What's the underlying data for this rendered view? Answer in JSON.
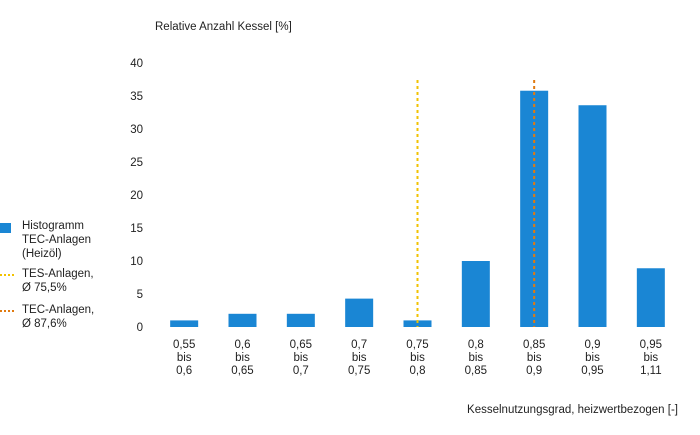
{
  "chart_data": {
    "type": "bar",
    "ylabel": "Relative Anzahl Kessel [%]",
    "xlabel": "Kesselnutzungsgrad, heizwertbezogen [-]",
    "ylim": [
      0,
      40
    ],
    "yticks": [
      "0",
      "5",
      "10",
      "15",
      "20",
      "25",
      "30",
      "35",
      "40"
    ],
    "categories": [
      [
        "0,55",
        "bis",
        "0,6"
      ],
      [
        "0,6",
        "bis",
        "0,65"
      ],
      [
        "0,65",
        "bis",
        "0,7"
      ],
      [
        "0,7",
        "bis",
        "0,75"
      ],
      [
        "0,75",
        "bis",
        "0,8"
      ],
      [
        "0,8",
        "bis",
        "0,85"
      ],
      [
        "0,85",
        "bis",
        "0,9"
      ],
      [
        "0,9",
        "bis",
        "0,95"
      ],
      [
        "0,95",
        "bis",
        "1,11"
      ]
    ],
    "series": [
      {
        "name": "Histogramm TEC-Anlagen (Heizöl)",
        "color": "#1a86d4",
        "values": [
          1.0,
          2.0,
          2.0,
          4.3,
          1.0,
          10.0,
          35.8,
          33.6,
          8.9
        ]
      }
    ],
    "reference_lines": [
      {
        "name": "TES-Anlagen, Ø 75,5%",
        "category_index": 4,
        "color": "#f2c200",
        "style": "dotted"
      },
      {
        "name": "TEC-Anlagen, Ø 87,6%",
        "category_index": 6,
        "color": "#e07a10",
        "style": "dotted"
      }
    ],
    "legend_position": "left"
  },
  "legend": {
    "items": [
      {
        "label": "Histogramm\nTEC-Anlagen\n(Heizöl)"
      },
      {
        "label": "TES-Anlagen,\nØ 75,5%"
      },
      {
        "label": "TEC-Anlagen,\nØ 87,6%"
      }
    ]
  }
}
